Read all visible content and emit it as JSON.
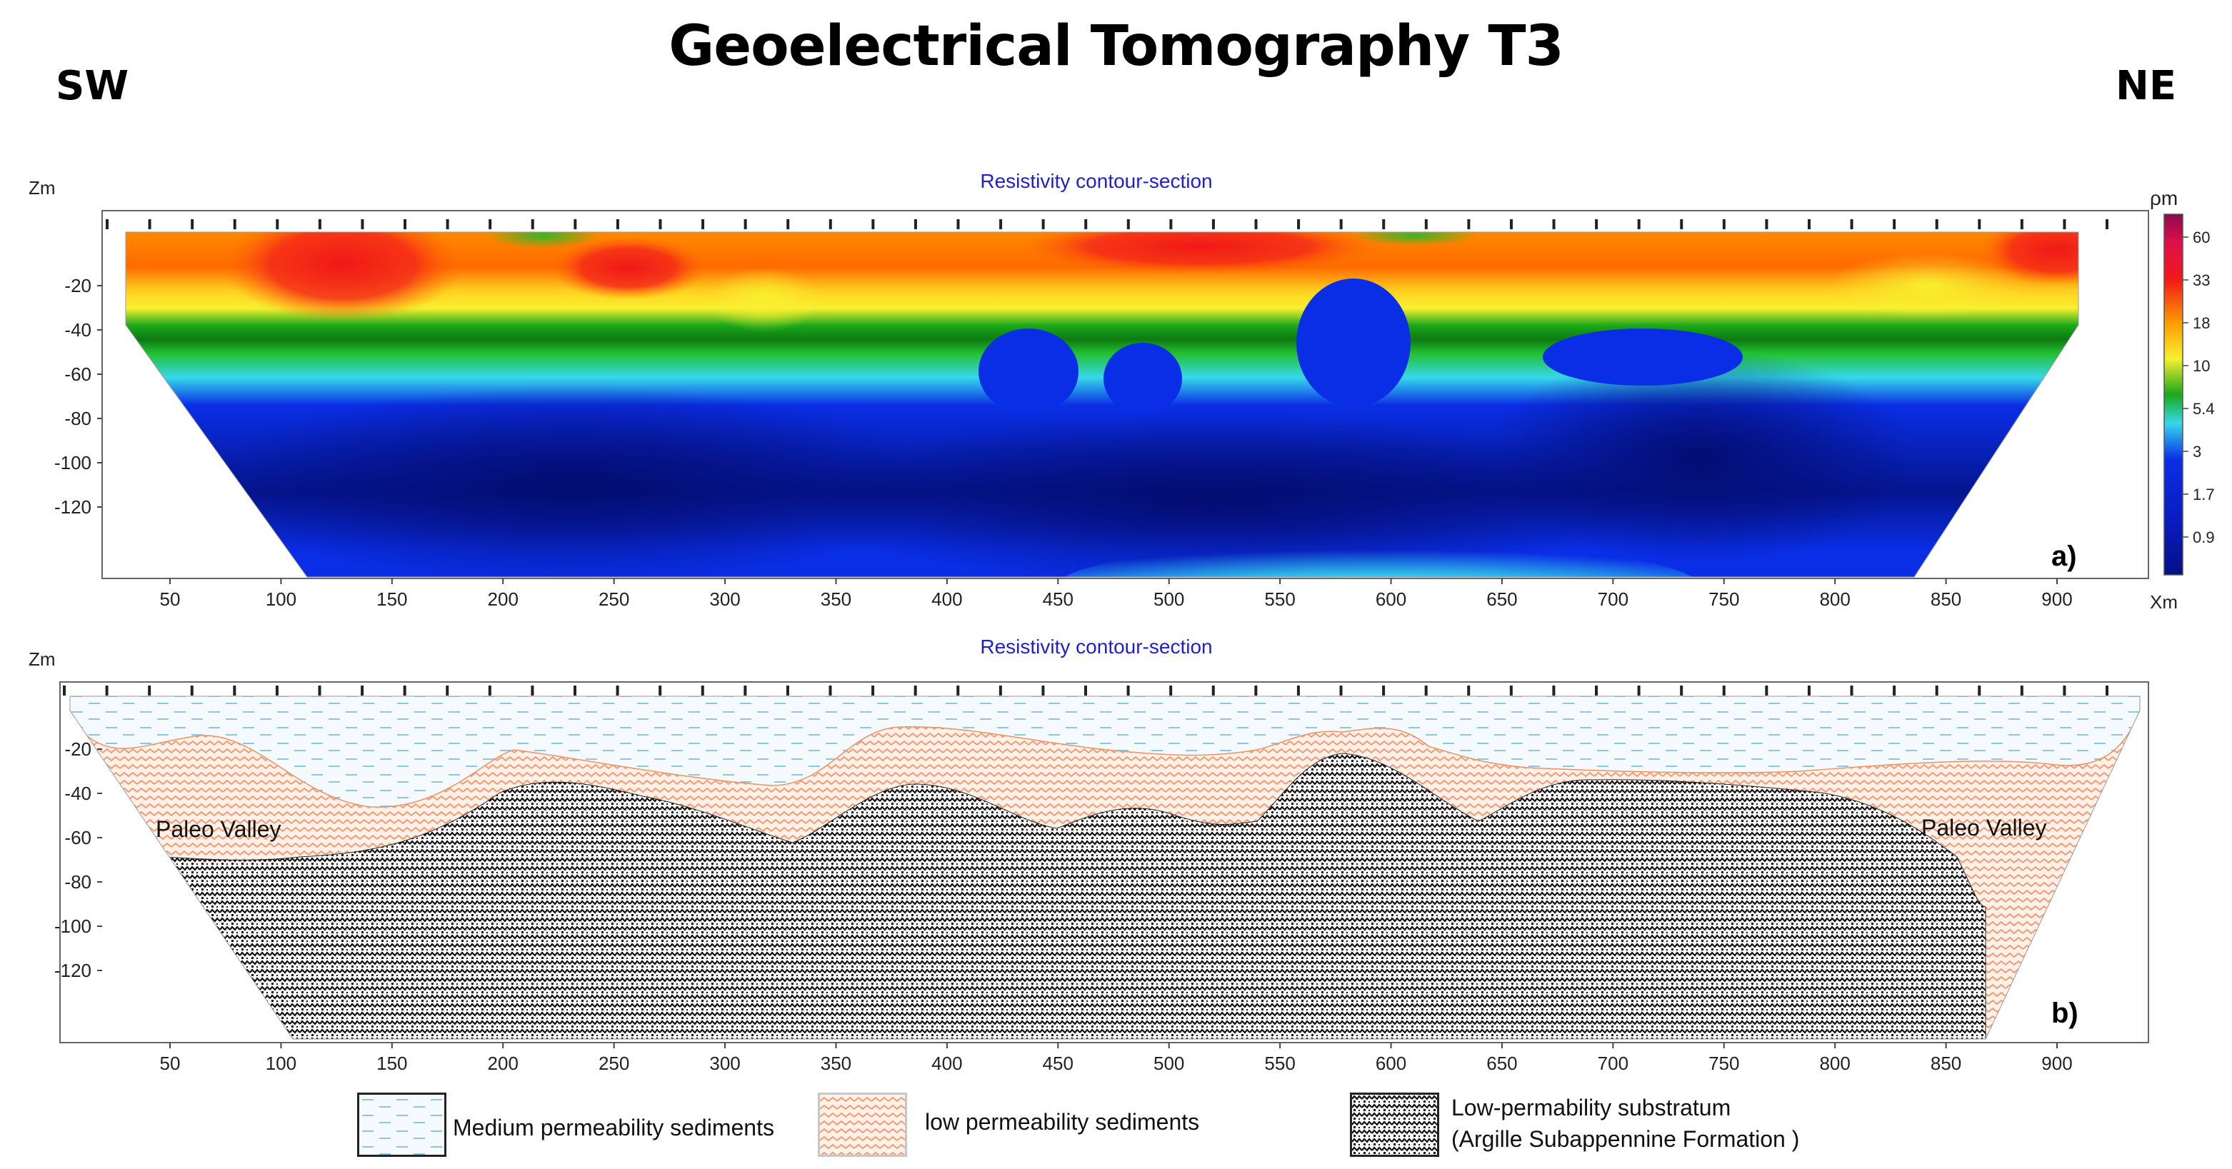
{
  "title": "Geoelectrical Tomography T3",
  "direction_left": "SW",
  "direction_right": "NE",
  "panel_a": {
    "subtitle": "Resistivity contour-section",
    "z_axis_label": "Zm",
    "x_axis_label": "Xm",
    "panel_label": "a)",
    "colorbar_label": "ρm",
    "colorbar_ticks": [
      "60",
      "33",
      "18",
      "10",
      "5.4",
      "3",
      "1.7",
      "0.9"
    ],
    "colors": {
      "red": "#f01818",
      "orange": "#ff9a00",
      "yellow": "#f8f030",
      "green": "#1aa81a",
      "cyan": "#36d8ea",
      "blue": "#0a2ee6",
      "navy": "#050f85"
    }
  },
  "panel_b": {
    "subtitle": "Resistivity contour-section",
    "z_axis_label": "Zm",
    "panel_label": "b)",
    "paleo_left": "Paleo Valley",
    "paleo_right": "Paleo Valley"
  },
  "axes": {
    "x_ticks": [
      "50",
      "100",
      "150",
      "200",
      "250",
      "300",
      "350",
      "400",
      "450",
      "500",
      "550",
      "600",
      "650",
      "700",
      "750",
      "800",
      "850",
      "900"
    ],
    "z_ticks": [
      "-20",
      "-40",
      "-60",
      "-80",
      "-100",
      "-120"
    ]
  },
  "legend": {
    "medium": "Medium permeability sediments",
    "low": "low permeability sediments",
    "substratum_line1": "Low-permability substratum",
    "substratum_line2": "(Argille Subappennine Formation )",
    "colors": {
      "medium": "#9ed0e8",
      "low": "#f2a27c",
      "substratum": "#111111"
    }
  }
}
